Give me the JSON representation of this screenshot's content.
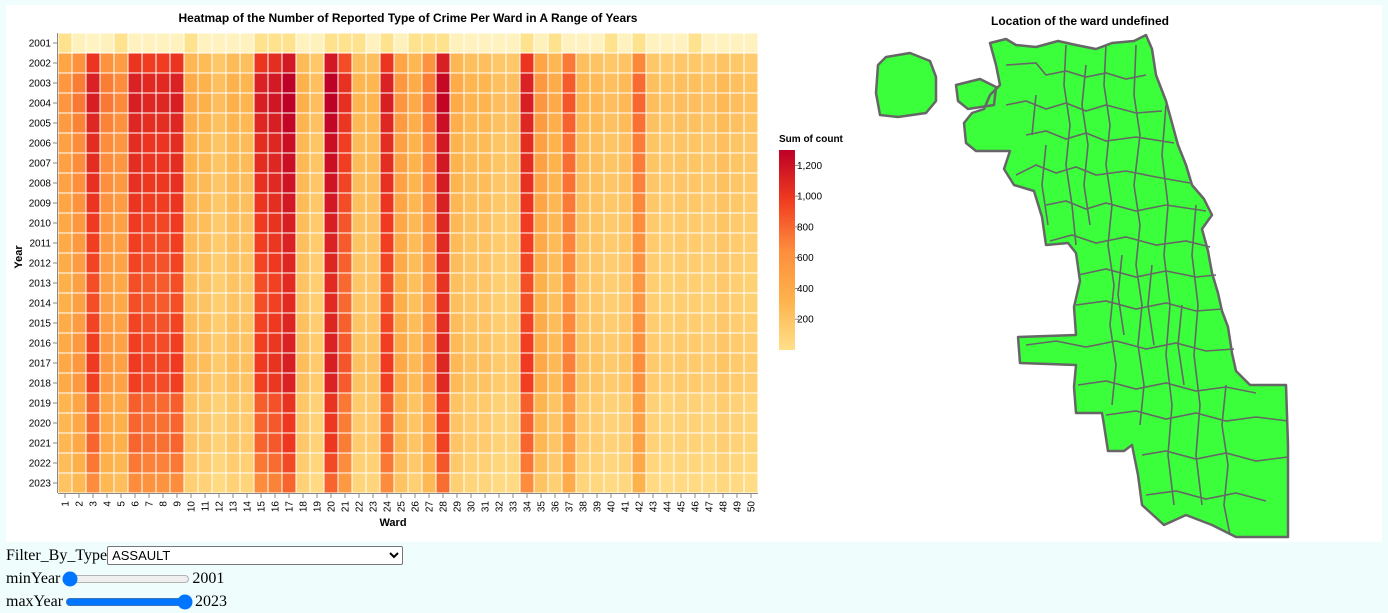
{
  "heatmap": {
    "title": "Heatmap of the Number of Reported Type of Crime Per Ward in A Range of Years",
    "xlabel": "Ward",
    "ylabel": "Year",
    "legend_title": "Sum of count",
    "legend_ticks": [
      "200",
      "400",
      "600",
      "800",
      "1,000",
      "1,200"
    ],
    "legend_tick_values": [
      200,
      400,
      600,
      800,
      1000,
      1200
    ]
  },
  "map": {
    "title": "Location of the ward undefined",
    "fill_color": "#3bff3b",
    "stroke_color": "#666666"
  },
  "controls": {
    "filter_label": "Filter_By_Type",
    "filter_selected": "ASSAULT",
    "min_label": "minYear",
    "min_value": "2001",
    "max_label": "maxYear",
    "max_value": "2023",
    "min_fraction": 0,
    "max_fraction": 1
  },
  "chart_data": {
    "type": "heatmap",
    "title": "Heatmap of the Number of Reported Type of Crime Per Ward in A Range of Years",
    "xlabel": "Ward",
    "ylabel": "Year",
    "x": [
      1,
      2,
      3,
      4,
      5,
      6,
      7,
      8,
      9,
      10,
      11,
      12,
      13,
      14,
      15,
      16,
      17,
      18,
      19,
      20,
      21,
      22,
      23,
      24,
      25,
      26,
      27,
      28,
      29,
      30,
      31,
      32,
      33,
      34,
      35,
      36,
      37,
      38,
      39,
      40,
      41,
      42,
      43,
      44,
      45,
      46,
      47,
      48,
      49,
      50
    ],
    "y": [
      2001,
      2002,
      2003,
      2004,
      2005,
      2006,
      2007,
      2008,
      2009,
      2010,
      2011,
      2012,
      2013,
      2014,
      2015,
      2016,
      2017,
      2018,
      2019,
      2020,
      2021,
      2022,
      2023
    ],
    "color_domain": [
      0,
      1300
    ],
    "color_scheme": "yelloworangered",
    "ward_base_values": [
      550,
      650,
      1000,
      650,
      600,
      1000,
      950,
      950,
      1000,
      450,
      420,
      350,
      420,
      400,
      1000,
      1050,
      1200,
      420,
      350,
      1200,
      900,
      400,
      400,
      1000,
      550,
      450,
      650,
      1150,
      450,
      400,
      400,
      350,
      350,
      1000,
      550,
      450,
      750,
      400,
      380,
      350,
      380,
      700,
      350,
      330,
      350,
      350,
      330,
      380,
      350,
      330
    ],
    "row_multipliers_2002_2018": [
      0.95,
      1.08,
      1.1,
      1.05,
      1.0,
      1.0,
      0.98,
      0.95,
      0.92,
      0.9,
      0.88,
      0.85,
      0.85,
      0.88,
      0.9,
      0.92,
      0.9
    ],
    "row_multipliers_2019_2023": [
      0.8,
      0.78,
      0.78,
      0.72,
      0.65
    ],
    "year_2001_values": [
      180,
      30,
      10,
      30,
      180,
      20,
      20,
      20,
      20,
      180,
      20,
      20,
      20,
      20,
      180,
      180,
      180,
      20,
      30,
      180,
      180,
      180,
      20,
      180,
      30,
      180,
      180,
      180,
      30,
      20,
      20,
      20,
      20,
      180,
      30,
      180,
      20,
      20,
      20,
      180,
      20,
      180,
      20,
      20,
      20,
      180,
      20,
      20,
      20,
      20
    ]
  }
}
